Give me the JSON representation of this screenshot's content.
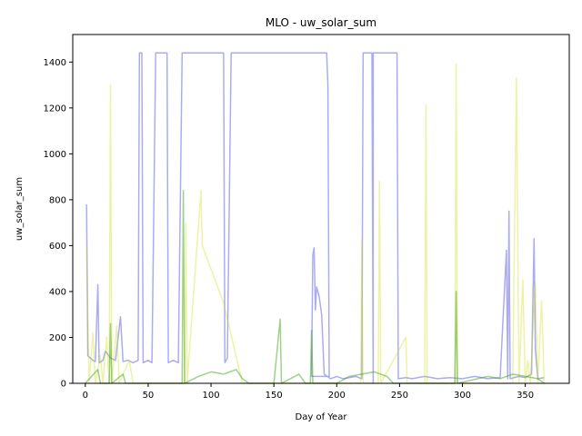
{
  "chart_data": {
    "type": "line",
    "title": "MLO - uw_solar_sum",
    "xlabel": "Day of Year",
    "ylabel": "uw_solar_sum",
    "xlim": [
      -10,
      385
    ],
    "ylim": [
      0,
      1520
    ],
    "xticks": [
      0,
      50,
      100,
      150,
      200,
      250,
      300,
      350
    ],
    "yticks": [
      0,
      200,
      400,
      600,
      800,
      1000,
      1200,
      1400
    ],
    "grid": false,
    "legend": "none",
    "series": [
      {
        "color": "#0000dd",
        "opacity": 0.33,
        "points": [
          [
            1,
            780
          ],
          [
            2,
            120
          ],
          [
            4,
            110
          ],
          [
            6,
            100
          ],
          [
            8,
            95
          ],
          [
            10,
            430
          ],
          [
            11,
            90
          ],
          [
            14,
            100
          ],
          [
            16,
            140
          ],
          [
            20,
            110
          ],
          [
            24,
            100
          ],
          [
            28,
            290
          ],
          [
            30,
            95
          ],
          [
            34,
            100
          ],
          [
            38,
            90
          ],
          [
            42,
            100
          ],
          [
            43,
            1440
          ],
          [
            45,
            1440
          ],
          [
            46,
            90
          ],
          [
            50,
            100
          ],
          [
            53,
            90
          ],
          [
            56,
            1440
          ],
          [
            65,
            1440
          ],
          [
            66,
            90
          ],
          [
            70,
            100
          ],
          [
            74,
            90
          ],
          [
            77,
            1440
          ],
          [
            110,
            1440
          ],
          [
            111,
            90
          ],
          [
            113,
            110
          ],
          [
            116,
            1440
          ],
          [
            192,
            1440
          ],
          [
            193,
            1300
          ],
          [
            194,
            30
          ],
          [
            180,
            30
          ],
          [
            181,
            560
          ],
          [
            182,
            590
          ],
          [
            183,
            320
          ],
          [
            184,
            420
          ],
          [
            186,
            380
          ],
          [
            188,
            300
          ],
          [
            190,
            40
          ],
          [
            195,
            20
          ],
          [
            200,
            30
          ],
          [
            205,
            20
          ],
          [
            210,
            25
          ],
          [
            215,
            30
          ],
          [
            220,
            20
          ],
          [
            221,
            1440
          ],
          [
            228,
            1440
          ],
          [
            229,
            0
          ],
          [
            229,
            1440
          ],
          [
            248,
            1440
          ],
          [
            249,
            20
          ],
          [
            255,
            25
          ],
          [
            260,
            20
          ],
          [
            270,
            30
          ],
          [
            280,
            20
          ],
          [
            290,
            25
          ],
          [
            300,
            20
          ],
          [
            310,
            30
          ],
          [
            320,
            20
          ],
          [
            330,
            25
          ],
          [
            335,
            580
          ],
          [
            336,
            20
          ],
          [
            337,
            750
          ],
          [
            338,
            20
          ],
          [
            345,
            30
          ],
          [
            350,
            25
          ],
          [
            355,
            40
          ],
          [
            357,
            630
          ],
          [
            358,
            150
          ],
          [
            360,
            20
          ],
          [
            365,
            25
          ]
        ]
      },
      {
        "color": "#c8dc00",
        "opacity": 0.35,
        "points": [
          [
            1,
            600
          ],
          [
            3,
            0
          ],
          [
            6,
            220
          ],
          [
            8,
            0
          ],
          [
            12,
            120
          ],
          [
            14,
            0
          ],
          [
            17,
            200
          ],
          [
            19,
            0
          ],
          [
            20,
            1300
          ],
          [
            21,
            0
          ],
          [
            25,
            250
          ],
          [
            27,
            0
          ],
          [
            35,
            100
          ],
          [
            38,
            0
          ],
          [
            45,
            0
          ],
          [
            60,
            0
          ],
          [
            79,
            0
          ],
          [
            80,
            700
          ],
          [
            81,
            0
          ],
          [
            92,
            840
          ],
          [
            93,
            600
          ],
          [
            110,
            350
          ],
          [
            125,
            0
          ],
          [
            140,
            0
          ],
          [
            160,
            0
          ],
          [
            180,
            0
          ],
          [
            200,
            0
          ],
          [
            219,
            0
          ],
          [
            220,
            630
          ],
          [
            221,
            0
          ],
          [
            233,
            0
          ],
          [
            234,
            880
          ],
          [
            235,
            0
          ],
          [
            255,
            200
          ],
          [
            256,
            0
          ],
          [
            270,
            0
          ],
          [
            271,
            1215
          ],
          [
            272,
            0
          ],
          [
            294,
            0
          ],
          [
            295,
            1390
          ],
          [
            296,
            0
          ],
          [
            320,
            0
          ],
          [
            340,
            0
          ],
          [
            343,
            1330
          ],
          [
            345,
            0
          ],
          [
            348,
            450
          ],
          [
            350,
            0
          ],
          [
            352,
            100
          ],
          [
            354,
            0
          ],
          [
            358,
            440
          ],
          [
            360,
            0
          ],
          [
            363,
            360
          ],
          [
            365,
            0
          ]
        ]
      },
      {
        "color": "#2a9a00",
        "opacity": 0.45,
        "points": [
          [
            0,
            0
          ],
          [
            10,
            60
          ],
          [
            12,
            0
          ],
          [
            19,
            0
          ],
          [
            20,
            260
          ],
          [
            21,
            0
          ],
          [
            30,
            40
          ],
          [
            32,
            0
          ],
          [
            45,
            0
          ],
          [
            77,
            0
          ],
          [
            78,
            840
          ],
          [
            79,
            0
          ],
          [
            90,
            30
          ],
          [
            100,
            50
          ],
          [
            110,
            40
          ],
          [
            120,
            60
          ],
          [
            125,
            20
          ],
          [
            130,
            0
          ],
          [
            150,
            0
          ],
          [
            155,
            280
          ],
          [
            156,
            0
          ],
          [
            170,
            40
          ],
          [
            175,
            0
          ],
          [
            179,
            0
          ],
          [
            180,
            230
          ],
          [
            181,
            0
          ],
          [
            200,
            0
          ],
          [
            210,
            30
          ],
          [
            220,
            40
          ],
          [
            230,
            50
          ],
          [
            240,
            30
          ],
          [
            245,
            0
          ],
          [
            280,
            0
          ],
          [
            294,
            0
          ],
          [
            295,
            400
          ],
          [
            296,
            0
          ],
          [
            320,
            30
          ],
          [
            330,
            20
          ],
          [
            340,
            40
          ],
          [
            350,
            30
          ],
          [
            360,
            20
          ],
          [
            365,
            0
          ]
        ]
      }
    ]
  }
}
